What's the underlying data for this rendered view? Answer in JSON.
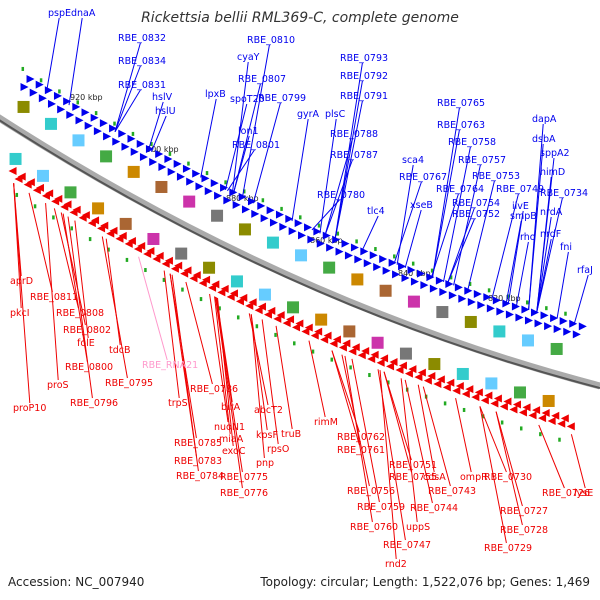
{
  "title": "Rickettsia bellii RML369-C, complete genome",
  "footer": {
    "accession": "Accession: NC_007940",
    "summary": "Topology: circular; Length: 1,522,076 bp; Genes: 1,469"
  },
  "colors": {
    "forward_strand": "#0000ee",
    "reverse_strand": "#ee0000",
    "rna_gene": "#ff99cc",
    "backbone": "#999999"
  },
  "scale_labels": [
    "920 kbp",
    "900 kbp",
    "880 kbp",
    "860 kbp",
    "840 kbp",
    "820 kbp"
  ],
  "forward_labels": [
    "pspE",
    "dnaA",
    "RBE_0832",
    "RBE_0834",
    "RBE_0831",
    "hslV",
    "hslU",
    "RBE_0810",
    "cyaY",
    "RBE_0807",
    "lpxB",
    "spoT20",
    "RBE_0799",
    "lon1",
    "RBE_0801",
    "RBE_0793",
    "RBE_0792",
    "RBE_0791",
    "gyrA",
    "plsC",
    "RBE_0788",
    "RBE_0787",
    "RBE_0780",
    "tlc4",
    "RBE_0765",
    "RBE_0763",
    "RBE_0758",
    "sca4",
    "RBE_0757",
    "RBE_0767",
    "RBE_0764",
    "RBE_0753",
    "xseB",
    "RBE_0749",
    "RBE_0754",
    "RBE_0752",
    "dapA",
    "dsbA",
    "sppA2",
    "himD",
    "RBE_0734",
    "ilvE",
    "smpB",
    "nrdA",
    "rho",
    "nrdF",
    "fni",
    "rfaJ"
  ],
  "reverse_labels": [
    "aprD",
    "RBE_0811",
    "pkcI",
    "RBE_0808",
    "RBE_0802",
    "folE",
    "tdcB",
    "RBE_0800",
    "proS",
    "RBE_0795",
    "proP10",
    "RBE_0796",
    "RBE_0786",
    "trpS",
    "birA",
    "nuoN1",
    "abcT2",
    "miaA",
    "kpsF",
    "truB",
    "RBE_0785",
    "exoC",
    "rpsO",
    "RBE_0783",
    "pnp",
    "RBE_0784",
    "RBE_0775",
    "RBE_0776",
    "rimM",
    "RBE_0762",
    "RBE_0761",
    "RBE_0751",
    "RBE_0755",
    "cdsA",
    "ompR",
    "RBE_0756",
    "RBE_0743",
    "RBE_0759",
    "RBE_0744",
    "RBE_0760",
    "uppS",
    "RBE_0747",
    "rnd2",
    "RBE_0730",
    "RBE_0726",
    "lysE",
    "RBE_0727",
    "RBE_0728",
    "RBE_0729"
  ],
  "rna_labels": [
    "RBE_RNA21"
  ]
}
